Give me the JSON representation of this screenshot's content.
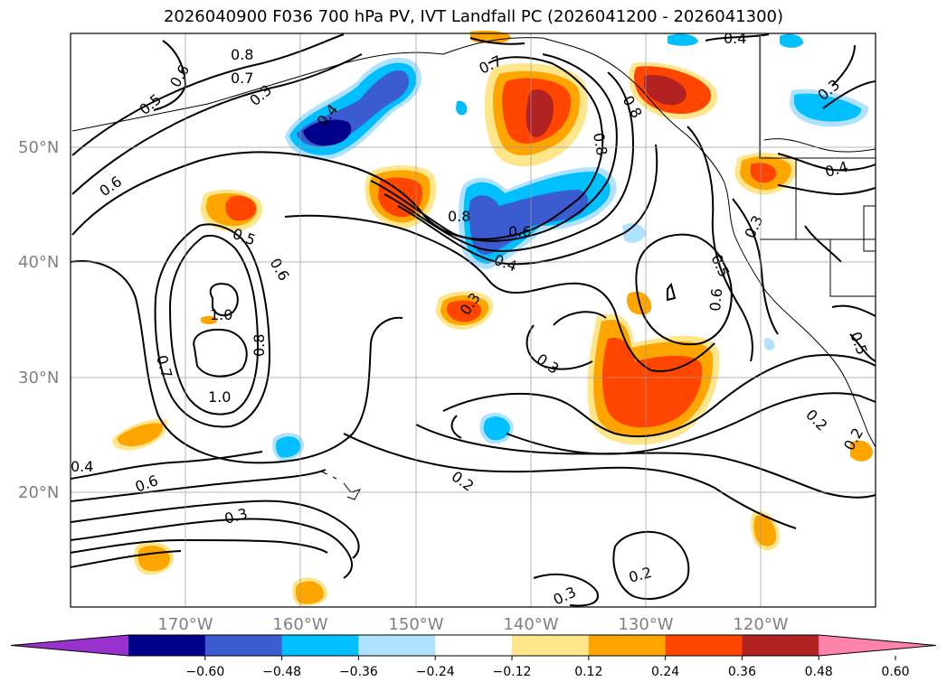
{
  "title": "2026040900 F036 700 hPa PV, IVT Landfall PC (2026041200 - 2026041300)",
  "map": {
    "projection": "PlateCarree",
    "extent": {
      "lon": [
        -180,
        -110
      ],
      "lat": [
        10,
        60
      ]
    },
    "lat_ticks": [
      {
        "value": 50,
        "label": "50°N"
      },
      {
        "value": 40,
        "label": "40°N"
      },
      {
        "value": 30,
        "label": "30°N"
      },
      {
        "value": 20,
        "label": "20°N"
      }
    ],
    "lon_ticks": [
      {
        "value": -170,
        "label": "170°W"
      },
      {
        "value": -160,
        "label": "160°W"
      },
      {
        "value": -150,
        "label": "150°W"
      },
      {
        "value": -140,
        "label": "140°W"
      },
      {
        "value": -130,
        "label": "130°W"
      },
      {
        "value": -120,
        "label": "120°W"
      }
    ],
    "grid": true,
    "contour_labels": [
      "0.8",
      "0.7",
      "0.6",
      "0.5",
      "0.3",
      "0.4",
      "0.6",
      "0.5",
      "0.6",
      "0.7",
      "1.0",
      "0.8",
      "1.0",
      "0.6",
      "0.3",
      "0.4",
      "0.2",
      "0.7",
      "0.8",
      "0.6",
      "0.4",
      "0.3",
      "0.8",
      "0.8",
      "0.3",
      "0.2",
      "0.3",
      "0.3",
      "0.5",
      "0.6",
      "0.3",
      "0.4",
      "0.5",
      "0.2",
      "0.2",
      "0.4"
    ]
  },
  "colorbar": {
    "ticks": [
      "−0.60",
      "−0.48",
      "−0.36",
      "−0.24",
      "−0.12",
      "0.12",
      "0.24",
      "0.36",
      "0.48",
      "0.60"
    ],
    "colors": [
      "#9932cc",
      "#00008b",
      "#3b5bd1",
      "#00bfff",
      "#b0e2ff",
      "#ffffff",
      "#ffe68a",
      "#ffa500",
      "#ff4500",
      "#b22222",
      "#ff82ab"
    ]
  }
}
